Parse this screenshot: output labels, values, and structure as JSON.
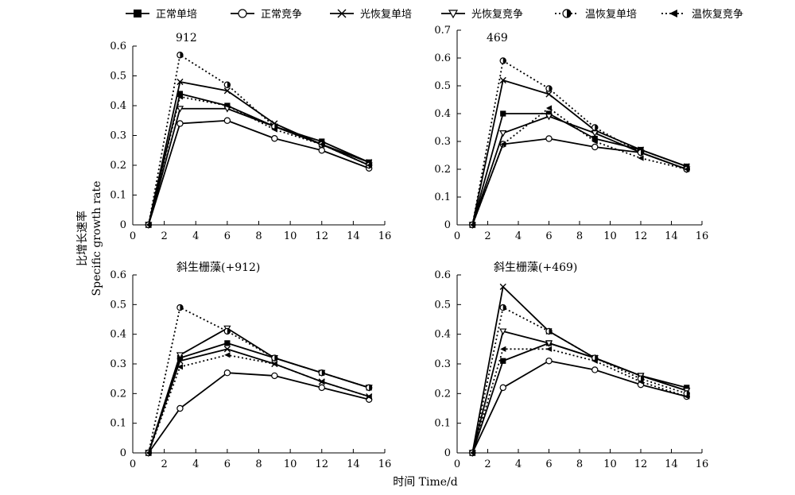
{
  "figure": {
    "xlabel": "时间 Time/d",
    "ylabel_cn": "比增长速率",
    "ylabel_en": "Specific growth rate"
  },
  "legend": [
    {
      "label": "正常单培",
      "marker": "square-filled",
      "dash": "solid"
    },
    {
      "label": "正常竞争",
      "marker": "circle-open",
      "dash": "solid"
    },
    {
      "label": "光恢复单培",
      "marker": "x",
      "dash": "solid"
    },
    {
      "label": "光恢复竞争",
      "marker": "triangle-down-open",
      "dash": "solid"
    },
    {
      "label": "温恢复单培",
      "marker": "circle-half",
      "dash": "dotted"
    },
    {
      "label": "温恢复竞争",
      "marker": "triangle-left-filled",
      "dash": "dotted"
    }
  ],
  "chart_data": [
    {
      "type": "line",
      "title": "912",
      "x": [
        1,
        3,
        6,
        9,
        12,
        15
      ],
      "xlim": [
        0,
        16
      ],
      "xticks": [
        0,
        2,
        4,
        6,
        8,
        10,
        12,
        14,
        16
      ],
      "ylim": [
        0,
        0.6
      ],
      "yticks": [
        0,
        0.1,
        0.2,
        0.3,
        0.4,
        0.5,
        0.6
      ],
      "series": [
        {
          "name": "正常单培",
          "values": [
            0,
            0.44,
            0.4,
            0.33,
            0.28,
            0.21
          ]
        },
        {
          "name": "正常竞争",
          "values": [
            0,
            0.34,
            0.35,
            0.29,
            0.25,
            0.19
          ]
        },
        {
          "name": "光恢复单培",
          "values": [
            0,
            0.48,
            0.45,
            0.34,
            0.27,
            0.21
          ]
        },
        {
          "name": "光恢复竞争",
          "values": [
            0,
            0.39,
            0.39,
            0.33,
            0.27,
            0.2
          ]
        },
        {
          "name": "温恢复单培",
          "values": [
            0,
            0.57,
            0.47,
            0.33,
            0.27,
            0.2
          ]
        },
        {
          "name": "温恢复竞争",
          "values": [
            0,
            0.43,
            0.4,
            0.32,
            0.27,
            0.2
          ]
        }
      ]
    },
    {
      "type": "line",
      "title": "469",
      "x": [
        1,
        3,
        6,
        9,
        12,
        15
      ],
      "xlim": [
        0,
        16
      ],
      "xticks": [
        0,
        2,
        4,
        6,
        8,
        10,
        12,
        14,
        16
      ],
      "ylim": [
        0,
        0.7
      ],
      "yticks": [
        0,
        0.1,
        0.2,
        0.3,
        0.4,
        0.5,
        0.6,
        0.7
      ],
      "series": [
        {
          "name": "正常单培",
          "values": [
            0,
            0.4,
            0.4,
            0.31,
            0.27,
            0.21
          ]
        },
        {
          "name": "正常竞争",
          "values": [
            0,
            0.29,
            0.31,
            0.28,
            0.26,
            0.2
          ]
        },
        {
          "name": "光恢复单培",
          "values": [
            0,
            0.52,
            0.47,
            0.34,
            0.27,
            0.21
          ]
        },
        {
          "name": "光恢复竞争",
          "values": [
            0,
            0.33,
            0.39,
            0.33,
            0.26,
            0.2
          ]
        },
        {
          "name": "温恢复单培",
          "values": [
            0,
            0.59,
            0.49,
            0.35,
            0.26,
            0.2
          ]
        },
        {
          "name": "温恢复竞争",
          "values": [
            0,
            0.29,
            0.42,
            0.3,
            0.24,
            0.2
          ]
        }
      ]
    },
    {
      "type": "line",
      "title": "斜生栅藻(+912)",
      "x": [
        1,
        3,
        6,
        9,
        12,
        15
      ],
      "xlim": [
        0,
        16
      ],
      "xticks": [
        0,
        2,
        4,
        6,
        8,
        10,
        12,
        14,
        16
      ],
      "ylim": [
        0,
        0.6
      ],
      "yticks": [
        0,
        0.1,
        0.2,
        0.3,
        0.4,
        0.5,
        0.6
      ],
      "series": [
        {
          "name": "正常单培",
          "values": [
            0,
            0.32,
            0.37,
            0.32,
            0.27,
            0.22
          ]
        },
        {
          "name": "正常竞争",
          "values": [
            0,
            0.15,
            0.27,
            0.26,
            0.22,
            0.18
          ]
        },
        {
          "name": "光恢复单培",
          "values": [
            0,
            0.31,
            0.35,
            0.3,
            0.24,
            0.19
          ]
        },
        {
          "name": "光恢复竞争",
          "values": [
            0,
            0.33,
            0.42,
            0.32,
            0.27,
            0.22
          ]
        },
        {
          "name": "温恢复单培",
          "values": [
            0,
            0.49,
            0.41,
            0.32,
            0.27,
            0.22
          ]
        },
        {
          "name": "温恢复竞争",
          "values": [
            0,
            0.29,
            0.33,
            0.3,
            0.24,
            0.19
          ]
        }
      ]
    },
    {
      "type": "line",
      "title": "斜生栅藻(+469)",
      "x": [
        1,
        3,
        6,
        9,
        12,
        15
      ],
      "xlim": [
        0,
        16
      ],
      "xticks": [
        0,
        2,
        4,
        6,
        8,
        10,
        12,
        14,
        16
      ],
      "ylim": [
        0,
        0.6
      ],
      "yticks": [
        0,
        0.1,
        0.2,
        0.3,
        0.4,
        0.5,
        0.6
      ],
      "series": [
        {
          "name": "正常单培",
          "values": [
            0,
            0.31,
            0.37,
            0.32,
            0.26,
            0.22
          ]
        },
        {
          "name": "正常竞争",
          "values": [
            0,
            0.22,
            0.31,
            0.28,
            0.23,
            0.19
          ]
        },
        {
          "name": "光恢复单培",
          "values": [
            0,
            0.56,
            0.41,
            0.32,
            0.26,
            0.21
          ]
        },
        {
          "name": "光恢复竞争",
          "values": [
            0,
            0.41,
            0.37,
            0.32,
            0.26,
            0.21
          ]
        },
        {
          "name": "温恢复单培",
          "values": [
            0,
            0.49,
            0.41,
            0.32,
            0.25,
            0.2
          ]
        },
        {
          "name": "温恢复竞争",
          "values": [
            0,
            0.35,
            0.35,
            0.31,
            0.24,
            0.19
          ]
        }
      ]
    }
  ]
}
